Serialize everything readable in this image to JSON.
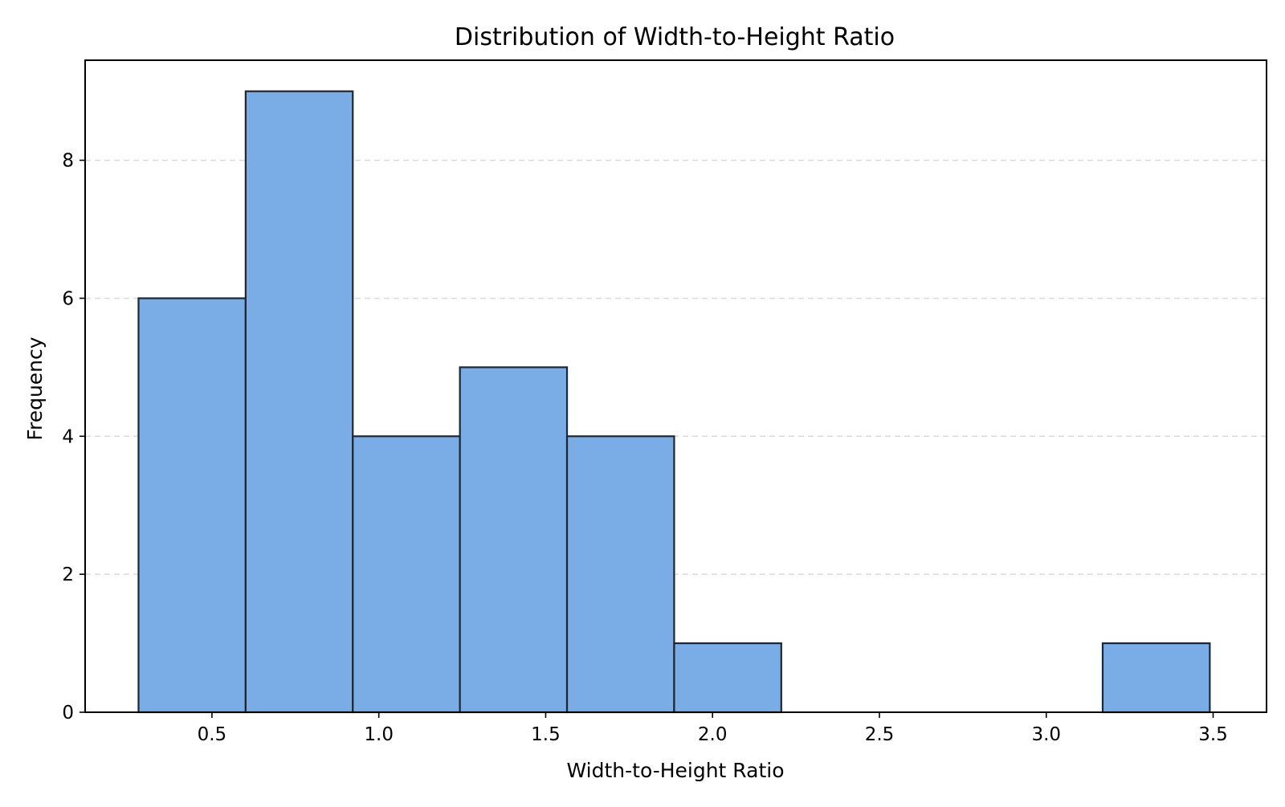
{
  "chart_data": {
    "type": "bar",
    "title": "Distribution of Width-to-Height Ratio",
    "xlabel": "Width-to-Height Ratio",
    "ylabel": "Frequency",
    "bin_edges": [
      0.28,
      0.601,
      0.922,
      1.243,
      1.564,
      1.885,
      2.206,
      2.527,
      2.848,
      3.169,
      3.49
    ],
    "values": [
      6,
      9,
      4,
      5,
      4,
      1,
      0,
      0,
      0,
      1
    ],
    "xlim": [
      0.12,
      3.66
    ],
    "ylim": [
      0,
      9.45
    ],
    "x_ticks": [
      "0.5",
      "1.0",
      "1.5",
      "2.0",
      "2.5",
      "3.0",
      "3.5"
    ],
    "y_ticks": [
      "0",
      "2",
      "4",
      "6",
      "8"
    ],
    "grid": "y-dashed",
    "colors": {
      "bar_fill": "#7aace6",
      "bar_edge": "#1f2733",
      "grid": "#d9d9d9",
      "axis": "#000000"
    }
  }
}
